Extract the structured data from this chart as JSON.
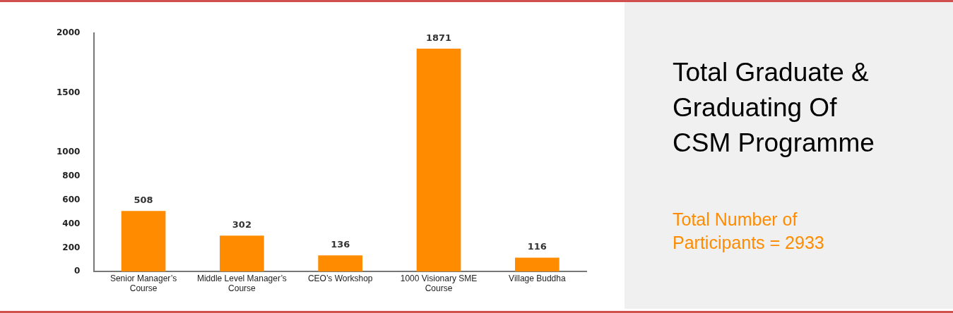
{
  "chart_data": {
    "type": "bar",
    "title": "Total Graduate & Graduating Of CSM Programme",
    "categories": [
      "Senior Manager’s Course",
      "Middle Level Manager’s Course",
      "CEO’s Workshop",
      "1000 Visionary SME Course",
      "Village Buddha"
    ],
    "values": [
      508,
      302,
      136,
      1871,
      116
    ],
    "color": "#ff8c00",
    "ylim": [
      0,
      2000
    ],
    "yticks": [
      0,
      200,
      400,
      600,
      800,
      1000,
      1500,
      2000
    ],
    "grid": false,
    "legend": false,
    "data_labels": true,
    "annotations": [
      "Total Number of Participants = 2933"
    ]
  }
}
